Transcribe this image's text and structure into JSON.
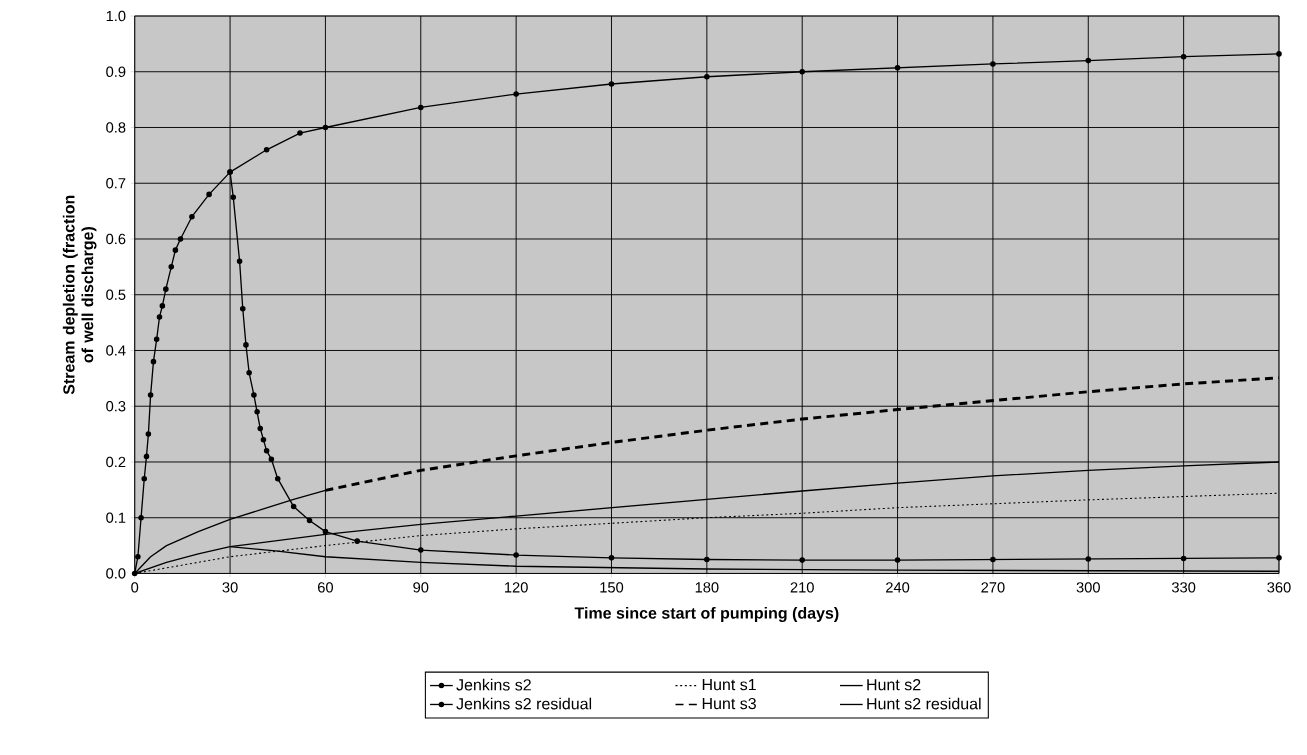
{
  "chart_data": {
    "type": "line",
    "xlabel": "Time since start of pumping (days)",
    "ylabel": "Stream depletion (fraction of well discharge)",
    "xlim": [
      0,
      360
    ],
    "ylim": [
      0,
      1.0
    ],
    "xticks": [
      0,
      30,
      60,
      90,
      120,
      150,
      180,
      210,
      240,
      270,
      300,
      330,
      360
    ],
    "yticks": [
      {
        "value": 0,
        "label": "0.0"
      },
      {
        "value": 0.1,
        "label": "0.1"
      },
      {
        "value": 0.2,
        "label": "0.2"
      },
      {
        "value": 0.3,
        "label": "0.3"
      },
      {
        "value": 0.4,
        "label": "0.4"
      },
      {
        "value": 0.5,
        "label": "0.5"
      },
      {
        "value": 0.6,
        "label": "0.6"
      },
      {
        "value": 0.7,
        "label": "0.7"
      },
      {
        "value": 0.8,
        "label": "0.8"
      },
      {
        "value": 0.9,
        "label": "0.9"
      },
      {
        "value": 1.0,
        "label": "1.0"
      }
    ],
    "grid": true,
    "legend": "bottom",
    "series": [
      {
        "name": "Jenkins s2",
        "color": "#000000",
        "marker": "circle",
        "line_style": "solid",
        "x": [
          0,
          1,
          2,
          3,
          3.7,
          4.3,
          5,
          5.9,
          6.9,
          7.8,
          8.7,
          9.8,
          11.5,
          12.8,
          14.4,
          18,
          23.4,
          30,
          41.5,
          52,
          60,
          90,
          120,
          150,
          180,
          210,
          240,
          270,
          300,
          330,
          360
        ],
        "values": [
          0,
          0.03,
          0.1,
          0.17,
          0.21,
          0.25,
          0.32,
          0.38,
          0.42,
          0.46,
          0.48,
          0.51,
          0.55,
          0.58,
          0.6,
          0.64,
          0.68,
          0.72,
          0.76,
          0.79,
          0.8,
          0.836,
          0.86,
          0.878,
          0.891,
          0.9,
          0.907,
          0.914,
          0.92,
          0.927,
          0.932
        ]
      },
      {
        "name": "Hunt s1",
        "color": "#000000",
        "marker": "none",
        "line_style": "dotted",
        "x": [
          0,
          30,
          60,
          90,
          120,
          150,
          180,
          210,
          240,
          270,
          300,
          330,
          360
        ],
        "values": [
          0,
          0.03,
          0.05,
          0.068,
          0.08,
          0.09,
          0.1,
          0.108,
          0.118,
          0.125,
          0.132,
          0.138,
          0.144
        ]
      },
      {
        "name": "Hunt s2",
        "color": "#000000",
        "marker": "none",
        "line_style": "solid",
        "x": [
          0,
          5,
          10,
          20,
          30,
          40,
          50,
          60
        ],
        "values": [
          0,
          0.03,
          0.05,
          0.075,
          0.097,
          0.115,
          0.133,
          0.149
        ]
      },
      {
        "name": "Jenkins s2 residual",
        "color": "#000000",
        "marker": "circle",
        "line_style": "solid",
        "x": [
          30,
          31,
          33,
          34,
          35,
          36,
          37.5,
          38.5,
          39.5,
          40.5,
          41.5,
          43,
          45,
          50,
          55,
          60,
          70,
          90,
          120,
          150,
          180,
          210,
          240,
          270,
          300,
          330,
          360
        ],
        "values": [
          0.72,
          0.675,
          0.56,
          0.475,
          0.41,
          0.36,
          0.32,
          0.29,
          0.26,
          0.24,
          0.22,
          0.205,
          0.17,
          0.12,
          0.095,
          0.075,
          0.058,
          0.042,
          0.033,
          0.028,
          0.025,
          0.024,
          0.024,
          0.025,
          0.026,
          0.027,
          0.028
        ]
      },
      {
        "name": "Hunt s3",
        "color": "#000000",
        "marker": "none",
        "line_style": "dashed",
        "x": [
          60,
          90,
          120,
          150,
          180,
          210,
          240,
          270,
          300,
          330,
          360
        ],
        "values": [
          0.149,
          0.185,
          0.211,
          0.235,
          0.257,
          0.277,
          0.294,
          0.31,
          0.326,
          0.34,
          0.351
        ]
      },
      {
        "name": "Hunt s2 residual",
        "color": "#000000",
        "marker": "none",
        "line_style": "solid",
        "x": [
          30,
          45,
          60,
          90,
          120,
          180,
          240,
          360
        ],
        "values": [
          0.048,
          0.04,
          0.03,
          0.02,
          0.013,
          0.008,
          0.006,
          0.004
        ]
      },
      {
        "color": "#000000",
        "marker": "none",
        "line_style": "solid",
        "x": [
          0,
          10,
          20,
          30,
          60,
          90,
          120,
          150,
          180,
          210,
          240,
          270,
          300,
          330,
          360
        ],
        "values": [
          0,
          0.02,
          0.035,
          0.048,
          0.07,
          0.088,
          0.103,
          0.118,
          0.133,
          0.148,
          0.162,
          0.175,
          0.185,
          0.193,
          0.2
        ]
      }
    ]
  }
}
